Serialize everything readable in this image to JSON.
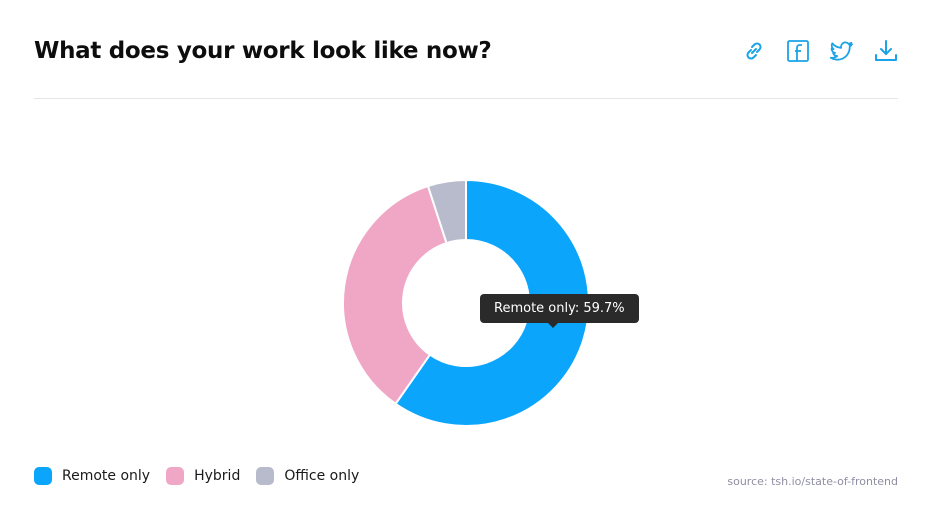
{
  "header": {
    "title": "What does your work look like now?"
  },
  "share_icons": [
    "link-icon",
    "facebook-icon",
    "twitter-icon",
    "download-icon"
  ],
  "accent_color": "#1aa3e8",
  "chart_data": {
    "type": "pie",
    "donut": true,
    "title": "What does your work look like now?",
    "categories": [
      "Remote only",
      "Hybrid",
      "Office only"
    ],
    "values": [
      59.7,
      35.3,
      5.0
    ],
    "unit": "%",
    "colors": [
      "#0ba5fc",
      "#f0a7c6",
      "#b7bbcc"
    ],
    "legend_position": "bottom-left",
    "tooltip": {
      "category": "Remote only",
      "text": "Remote only: 59.7%"
    }
  },
  "legend": {
    "items": [
      {
        "label": "Remote only",
        "color": "#0ba5fc"
      },
      {
        "label": "Hybrid",
        "color": "#f0a7c6"
      },
      {
        "label": "Office only",
        "color": "#b7bbcc"
      }
    ]
  },
  "footer": {
    "source": "source: tsh.io/state-of-frontend"
  }
}
